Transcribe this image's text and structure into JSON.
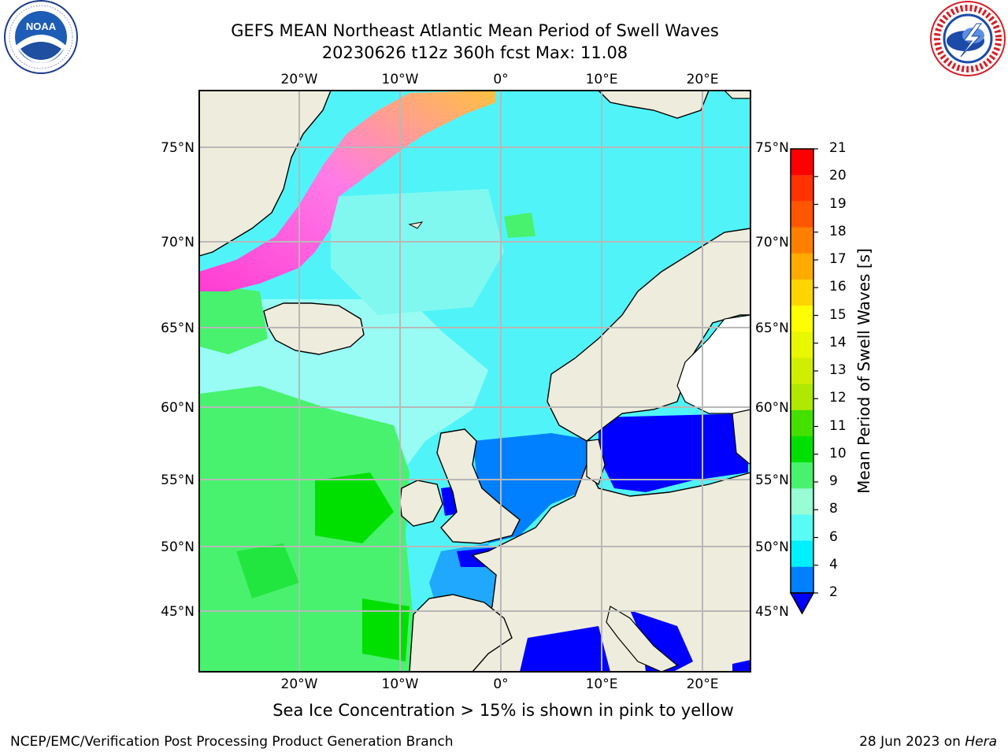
{
  "header": {
    "title": "GEFS MEAN Northeast Atlantic Mean Period of Swell Waves",
    "subtitle": "20230626 t12z 360h fcst   Max: 11.08"
  },
  "logos": {
    "left": "noaa-logo",
    "right": "nws-logo"
  },
  "map": {
    "lat_labels": [
      "75°N",
      "70°N",
      "65°N",
      "60°N",
      "55°N",
      "50°N",
      "45°N"
    ],
    "lon_labels": [
      "20°W",
      "10°W",
      "0°",
      "10°E",
      "20°E"
    ],
    "lon_labels_top": [
      "20°W",
      "10°W",
      "0°",
      "10°E",
      "20°E"
    ],
    "colors": {
      "land": "#eeecdc",
      "grid": "#b8b8b8",
      "coast": "#000000"
    }
  },
  "colorbar": {
    "title": "Mean Period of Swell Waves [s]",
    "ticks": [
      "21",
      "20",
      "19",
      "18",
      "17",
      "16",
      "15",
      "14",
      "13",
      "12",
      "11",
      "10",
      "9",
      "8",
      "6",
      "4",
      "2"
    ],
    "colors": [
      "#fe0000",
      "#fe3300",
      "#fe5500",
      "#ff8000",
      "#ffaa00",
      "#ffd500",
      "#fefe00",
      "#e8f800",
      "#d0ef00",
      "#b0e800",
      "#44e000",
      "#00e000",
      "#48f26e",
      "#98fcd4",
      "#58fcf4",
      "#00f0ff",
      "#0080ff",
      "#0000ff"
    ]
  },
  "note": "Sea Ice Concentration > 15% is shown in pink to yellow",
  "footer": {
    "left": "NCEP/EMC/Verification Post Processing Product Generation Branch",
    "date": "28 Jun 2023 on ",
    "machine": "Hera"
  }
}
